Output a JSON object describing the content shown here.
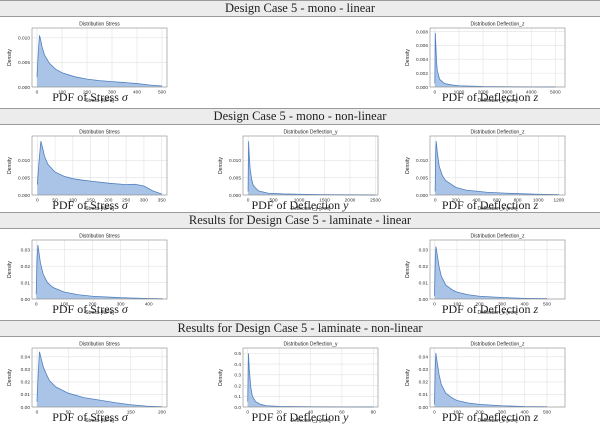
{
  "colors": {
    "fill": "#a9c4e6",
    "line": "#4f7fbf",
    "grid": "#e2e2e2",
    "axis": "#888888"
  },
  "sections": [
    {
      "title": "Design Case 5 - mono - linear"
    },
    {
      "title": "Design Case 5 - mono - non-linear"
    },
    {
      "title": "Results for Design Case 5 - laminate - linear"
    },
    {
      "title": "Results for Design Case 5 - laminate - non-linear"
    }
  ],
  "captions": {
    "stress": {
      "text": "PDF of Stress ",
      "symbol": "σ"
    },
    "defl_y": {
      "text": "PDF of Deflection ",
      "symbol": "y"
    },
    "defl_z": {
      "text": "PDF of Deflection ",
      "symbol": "z"
    }
  },
  "chart_data": [
    {
      "type": "area",
      "section": 0,
      "column": 0,
      "caption": "stress",
      "title": "Distribution Stress",
      "xlabel": "Stress [MPa]",
      "ylabel": "Density",
      "xlim": [
        -20,
        520
      ],
      "ylim": [
        0,
        0.012
      ],
      "xticks": [
        0,
        100,
        200,
        300,
        400,
        500
      ],
      "yticks": [
        0,
        0.005,
        0.01
      ],
      "ytick_labels": [
        "0.000",
        "0.005",
        "0.010"
      ],
      "x": [
        0,
        5,
        10,
        15,
        20,
        30,
        50,
        75,
        100,
        150,
        200,
        250,
        300,
        350,
        400,
        450,
        500
      ],
      "y": [
        0.002,
        0.007,
        0.0105,
        0.0095,
        0.0082,
        0.0065,
        0.0048,
        0.0036,
        0.0029,
        0.0021,
        0.0016,
        0.0013,
        0.0011,
        0.0009,
        0.0007,
        0.0004,
        0.0002
      ]
    },
    {
      "type": "area",
      "section": 0,
      "column": 2,
      "caption": "defl_z",
      "title": "Distribution Deflection_z",
      "xlabel": "Deflection_z [mm]",
      "ylabel": "Density",
      "xlim": [
        -200,
        5400
      ],
      "ylim": [
        0,
        0.0085
      ],
      "xticks": [
        0,
        1000,
        2000,
        3000,
        4000,
        5000
      ],
      "yticks": [
        0,
        0.002,
        0.004,
        0.006,
        0.008
      ],
      "ytick_labels": [
        "0.000",
        "0.002",
        "0.004",
        "0.006",
        "0.008"
      ],
      "x": [
        0,
        20,
        40,
        70,
        100,
        200,
        400,
        700,
        1000,
        2000,
        3000,
        4000,
        5000
      ],
      "y": [
        0.0005,
        0.0078,
        0.0062,
        0.0038,
        0.0024,
        0.0011,
        0.0005,
        0.0003,
        0.00018,
        7e-05,
        4e-05,
        2e-05,
        1e-05
      ]
    },
    {
      "type": "area",
      "section": 1,
      "column": 0,
      "caption": "stress",
      "title": "Distribution Stress",
      "xlabel": "Stress [MPa]",
      "ylabel": "Density",
      "xlim": [
        -15,
        365
      ],
      "ylim": [
        0,
        0.017
      ],
      "xticks": [
        0,
        50,
        100,
        150,
        200,
        250,
        300,
        350
      ],
      "yticks": [
        0,
        0.005,
        0.01
      ],
      "ytick_labels": [
        "0.000",
        "0.005",
        "0.010"
      ],
      "x": [
        0,
        5,
        10,
        15,
        20,
        30,
        50,
        75,
        100,
        125,
        150,
        200,
        250,
        275,
        300,
        325,
        350
      ],
      "y": [
        0.003,
        0.01,
        0.0155,
        0.0135,
        0.0112,
        0.0088,
        0.0066,
        0.0054,
        0.0047,
        0.0043,
        0.004,
        0.0034,
        0.003,
        0.0031,
        0.0026,
        0.0012,
        0.0003
      ]
    },
    {
      "type": "area",
      "section": 1,
      "column": 1,
      "caption": "defl_y",
      "title": "Distribution Deflection_y",
      "xlabel": "Deflection_y [mm]",
      "ylabel": "Density",
      "xlim": [
        -100,
        2550
      ],
      "ylim": [
        0,
        0.017
      ],
      "xticks": [
        0,
        500,
        1000,
        1500,
        2000,
        2500
      ],
      "yticks": [
        0,
        0.005,
        0.01
      ],
      "ytick_labels": [
        "0.000",
        "0.005",
        "0.010"
      ],
      "x": [
        0,
        10,
        20,
        40,
        70,
        100,
        200,
        400,
        700,
        1000,
        1500,
        2000,
        2500
      ],
      "y": [
        0.001,
        0.0155,
        0.012,
        0.0075,
        0.0045,
        0.0028,
        0.0012,
        0.0005,
        0.0003,
        0.0002,
        0.0001,
        5e-05,
        2e-05
      ]
    },
    {
      "type": "area",
      "section": 1,
      "column": 2,
      "caption": "defl_z",
      "title": "Distribution Deflection_z",
      "xlabel": "Deflection_z [mm]",
      "ylabel": "Density",
      "xlim": [
        -50,
        1260
      ],
      "ylim": [
        0,
        0.017
      ],
      "xticks": [
        0,
        200,
        400,
        600,
        800,
        1000,
        1200
      ],
      "yticks": [
        0,
        0.005,
        0.01
      ],
      "ytick_labels": [
        "0.000",
        "0.005",
        "0.010"
      ],
      "x": [
        0,
        5,
        10,
        20,
        40,
        70,
        100,
        200,
        300,
        500,
        700,
        1000,
        1200
      ],
      "y": [
        0.001,
        0.0115,
        0.0155,
        0.0125,
        0.0082,
        0.0056,
        0.0042,
        0.0022,
        0.0014,
        0.0008,
        0.0005,
        0.0002,
        0.0001
      ]
    },
    {
      "type": "area",
      "section": 2,
      "column": 0,
      "caption": "stress",
      "title": "Distribution Stress",
      "xlabel": "Stress [MPa]",
      "ylabel": "Density",
      "xlim": [
        -15,
        465
      ],
      "ylim": [
        0,
        0.036
      ],
      "xticks": [
        0,
        100,
        200,
        300,
        400
      ],
      "yticks": [
        0,
        0.01,
        0.02,
        0.03
      ],
      "ytick_labels": [
        "0.00",
        "0.01",
        "0.02",
        "0.03"
      ],
      "x": [
        0,
        3,
        6,
        10,
        15,
        25,
        40,
        60,
        100,
        150,
        200,
        300,
        400,
        450
      ],
      "y": [
        0.003,
        0.025,
        0.033,
        0.028,
        0.022,
        0.015,
        0.01,
        0.007,
        0.0042,
        0.0026,
        0.0017,
        0.0008,
        0.0003,
        0.0001
      ]
    },
    {
      "type": "area",
      "section": 2,
      "column": 2,
      "caption": "defl_z",
      "title": "Distribution Deflection_z",
      "xlabel": "Deflection_z [mm]",
      "ylabel": "Density",
      "xlim": [
        -20,
        580
      ],
      "ylim": [
        0,
        0.036
      ],
      "xticks": [
        0,
        100,
        200,
        300,
        400,
        500
      ],
      "yticks": [
        0,
        0.01,
        0.02,
        0.03
      ],
      "ytick_labels": [
        "0.00",
        "0.01",
        "0.02",
        "0.03"
      ],
      "x": [
        0,
        3,
        6,
        10,
        20,
        30,
        50,
        80,
        100,
        150,
        200,
        300,
        400,
        500
      ],
      "y": [
        0.002,
        0.022,
        0.032,
        0.029,
        0.02,
        0.014,
        0.0085,
        0.0055,
        0.0042,
        0.0026,
        0.0017,
        0.0009,
        0.0004,
        0.0002
      ]
    },
    {
      "type": "area",
      "section": 3,
      "column": 0,
      "caption": "stress",
      "title": "Distribution Stress",
      "xlabel": "Stress [MPa]",
      "ylabel": "Density",
      "xlim": [
        -8,
        208
      ],
      "ylim": [
        0,
        0.047
      ],
      "xticks": [
        0,
        50,
        100,
        150,
        200
      ],
      "yticks": [
        0,
        0.01,
        0.02,
        0.03,
        0.04
      ],
      "ytick_labels": [
        "0.00",
        "0.01",
        "0.02",
        "0.03",
        "0.04"
      ],
      "x": [
        0,
        2,
        4,
        6,
        10,
        15,
        20,
        30,
        50,
        75,
        100,
        125,
        150,
        175,
        200
      ],
      "y": [
        0.004,
        0.028,
        0.044,
        0.04,
        0.032,
        0.026,
        0.021,
        0.016,
        0.011,
        0.0075,
        0.0055,
        0.0035,
        0.0018,
        0.0007,
        0.0002
      ]
    },
    {
      "type": "area",
      "section": 3,
      "column": 1,
      "caption": "defl_y",
      "title": "Distribution Deflection_y",
      "xlabel": "Deflection_y [mm]",
      "ylabel": "Density",
      "xlim": [
        -3,
        83
      ],
      "ylim": [
        0,
        0.55
      ],
      "xticks": [
        0,
        20,
        40,
        60,
        80
      ],
      "yticks": [
        0,
        0.1,
        0.2,
        0.3,
        0.4,
        0.5
      ],
      "ytick_labels": [
        "0.0",
        "0.1",
        "0.2",
        "0.3",
        "0.4",
        "0.5"
      ],
      "x": [
        0,
        0.5,
        1,
        2,
        3,
        5,
        8,
        12,
        20,
        40,
        60,
        80
      ],
      "y": [
        0.05,
        0.5,
        0.35,
        0.18,
        0.1,
        0.05,
        0.025,
        0.012,
        0.006,
        0.002,
        0.001,
        0.0005
      ]
    },
    {
      "type": "area",
      "section": 3,
      "column": 2,
      "caption": "defl_z",
      "title": "Distribution Deflection_z",
      "xlabel": "Deflection_z [mm]",
      "ylabel": "Density",
      "xlim": [
        -20,
        580
      ],
      "ylim": [
        0,
        0.047
      ],
      "xticks": [
        0,
        100,
        200,
        300,
        400,
        500
      ],
      "yticks": [
        0,
        0.01,
        0.02,
        0.03,
        0.04
      ],
      "ytick_labels": [
        "0.00",
        "0.01",
        "0.02",
        "0.03",
        "0.04"
      ],
      "x": [
        0,
        3,
        6,
        10,
        20,
        30,
        50,
        80,
        100,
        150,
        200,
        300,
        400,
        500
      ],
      "y": [
        0.002,
        0.03,
        0.043,
        0.038,
        0.026,
        0.018,
        0.011,
        0.007,
        0.0052,
        0.0032,
        0.0021,
        0.001,
        0.0004,
        0.0002
      ]
    }
  ]
}
